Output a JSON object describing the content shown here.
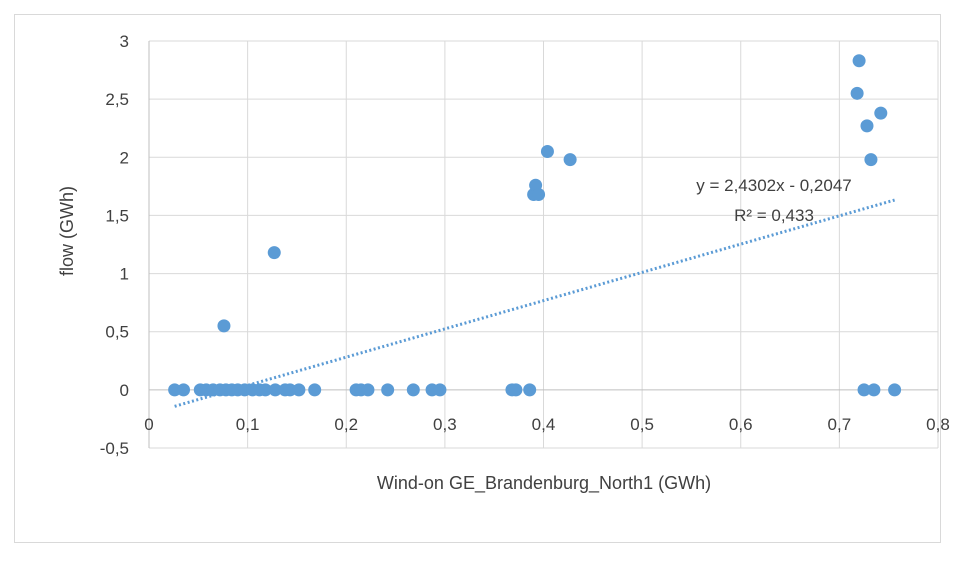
{
  "chart_data": {
    "type": "scatter",
    "title": "",
    "xlabel": "Wind-on GE_Brandenburg_North1 (GWh)",
    "ylabel": "flow (GWh)",
    "xlim": [
      0,
      0.8
    ],
    "ylim": [
      -0.5,
      3
    ],
    "x_ticks": [
      0,
      0.1,
      0.2,
      0.3,
      0.4,
      0.5,
      0.6,
      0.7,
      0.8
    ],
    "x_tick_labels": [
      "0",
      "0,1",
      "0,2",
      "0,3",
      "0,4",
      "0,5",
      "0,6",
      "0,7",
      "0,8"
    ],
    "y_ticks": [
      -0.5,
      0,
      0.5,
      1,
      1.5,
      2,
      2.5,
      3
    ],
    "y_tick_labels": [
      "-0,5",
      "0",
      "0,5",
      "1",
      "1,5",
      "2",
      "2,5",
      "3"
    ],
    "grid": true,
    "series": [
      {
        "color": "#5b9bd5",
        "points": [
          [
            0.026,
            0
          ],
          [
            0.035,
            0
          ],
          [
            0.052,
            0
          ],
          [
            0.058,
            0
          ],
          [
            0.065,
            0
          ],
          [
            0.072,
            0
          ],
          [
            0.078,
            0
          ],
          [
            0.084,
            0
          ],
          [
            0.09,
            0
          ],
          [
            0.097,
            0
          ],
          [
            0.105,
            0
          ],
          [
            0.112,
            0
          ],
          [
            0.118,
            0
          ],
          [
            0.128,
            0
          ],
          [
            0.138,
            0
          ],
          [
            0.143,
            0
          ],
          [
            0.152,
            0
          ],
          [
            0.168,
            0
          ],
          [
            0.21,
            0
          ],
          [
            0.215,
            0
          ],
          [
            0.222,
            0
          ],
          [
            0.242,
            0
          ],
          [
            0.268,
            0
          ],
          [
            0.287,
            0
          ],
          [
            0.295,
            0
          ],
          [
            0.368,
            0
          ],
          [
            0.372,
            0
          ],
          [
            0.386,
            0
          ],
          [
            0.725,
            0
          ],
          [
            0.735,
            0
          ],
          [
            0.756,
            0
          ],
          [
            0.076,
            0.55
          ],
          [
            0.127,
            1.18
          ],
          [
            0.39,
            1.68
          ],
          [
            0.392,
            1.76
          ],
          [
            0.395,
            1.68
          ],
          [
            0.404,
            2.05
          ],
          [
            0.427,
            1.98
          ],
          [
            0.72,
            2.83
          ],
          [
            0.718,
            2.55
          ],
          [
            0.728,
            2.27
          ],
          [
            0.732,
            1.98
          ],
          [
            0.742,
            2.38
          ]
        ]
      }
    ],
    "trendline": {
      "style": "dotted",
      "color": "#5b9bd5",
      "slope": 2.4302,
      "intercept": -0.2047,
      "x_range": [
        0.026,
        0.756
      ],
      "equation_label": "y = 2,4302x - 0,2047",
      "r2_label": "R² = 0,433"
    }
  }
}
